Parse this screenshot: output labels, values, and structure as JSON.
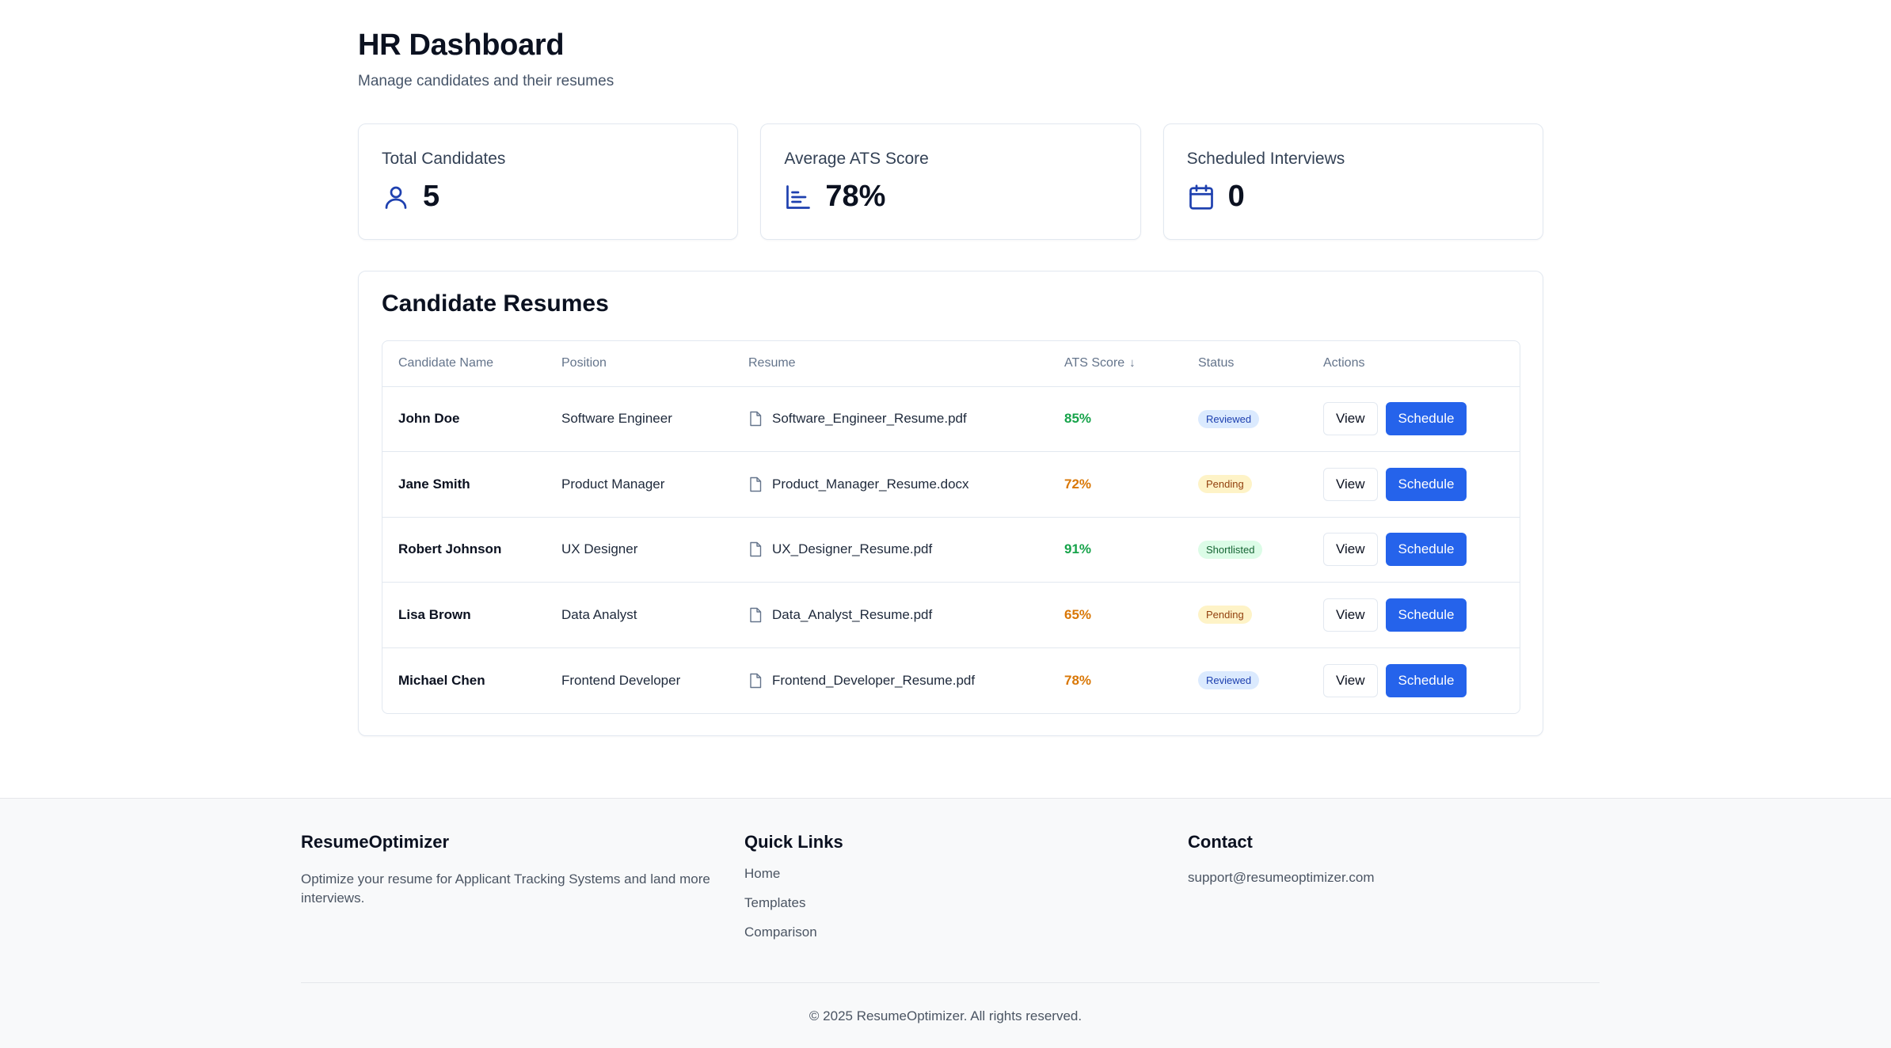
{
  "header": {
    "title": "HR Dashboard",
    "subtitle": "Manage candidates and their resumes"
  },
  "stats": [
    {
      "label": "Total Candidates",
      "value": "5",
      "icon": "user-icon"
    },
    {
      "label": "Average ATS Score",
      "value": "78%",
      "icon": "bar-chart-icon"
    },
    {
      "label": "Scheduled Interviews",
      "value": "0",
      "icon": "calendar-icon"
    }
  ],
  "resumes": {
    "title": "Candidate Resumes",
    "columns": [
      "Candidate Name",
      "Position",
      "Resume",
      "ATS Score",
      "Status",
      "Actions"
    ],
    "sort_indicator": "↓",
    "view_label": "View",
    "schedule_label": "Schedule",
    "rows": [
      {
        "name": "John Doe",
        "position": "Software Engineer",
        "resume": "Software_Engineer_Resume.pdf",
        "score": "85%",
        "status": "Reviewed"
      },
      {
        "name": "Jane Smith",
        "position": "Product Manager",
        "resume": "Product_Manager_Resume.docx",
        "score": "72%",
        "status": "Pending"
      },
      {
        "name": "Robert Johnson",
        "position": "UX Designer",
        "resume": "UX_Designer_Resume.pdf",
        "score": "91%",
        "status": "Shortlisted"
      },
      {
        "name": "Lisa Brown",
        "position": "Data Analyst",
        "resume": "Data_Analyst_Resume.pdf",
        "score": "65%",
        "status": "Pending"
      },
      {
        "name": "Michael Chen",
        "position": "Frontend Developer",
        "resume": "Frontend_Developer_Resume.pdf",
        "score": "78%",
        "status": "Reviewed"
      }
    ]
  },
  "colors": {
    "accent": "#2563eb",
    "icon_blue": "#1e40af",
    "score_high": "#16a34a",
    "score_mid": "#d97706",
    "status_reviewed_bg": "#dbeafe",
    "status_reviewed_fg": "#1e40af",
    "status_pending_bg": "#fef3c7",
    "status_pending_fg": "#92400e",
    "status_shortlisted_bg": "#dcfce7",
    "status_shortlisted_fg": "#166534"
  },
  "footer": {
    "brand": {
      "title": "ResumeOptimizer",
      "text": "Optimize your resume for Applicant Tracking Systems and land more interviews."
    },
    "quick_links": {
      "title": "Quick Links",
      "links": [
        "Home",
        "Templates",
        "Comparison"
      ]
    },
    "contact": {
      "title": "Contact",
      "email": "support@resumeoptimizer.com"
    },
    "copyright": "© 2025 ResumeOptimizer. All rights reserved."
  }
}
